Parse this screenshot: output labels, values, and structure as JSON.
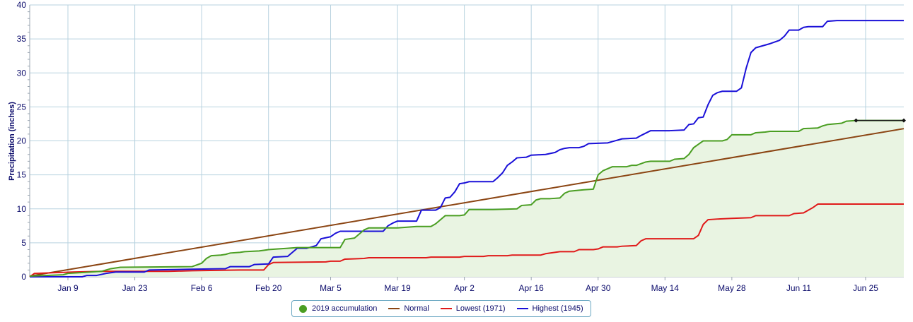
{
  "chart_data": {
    "type": "line",
    "title": "",
    "xlabel": "",
    "ylabel": "Precipitation (inches)",
    "ylim": [
      0,
      40
    ],
    "xlim": [
      "Jan 1",
      "Jul 4"
    ],
    "grid": true,
    "legend_position": "bottom-center",
    "x_ticks": [
      {
        "label": "Jan 9",
        "day": 9
      },
      {
        "label": "Jan 23",
        "day": 23
      },
      {
        "label": "Feb 6",
        "day": 37
      },
      {
        "label": "Feb 20",
        "day": 51
      },
      {
        "label": "Mar 5",
        "day": 64
      },
      {
        "label": "Mar 19",
        "day": 78
      },
      {
        "label": "Apr 2",
        "day": 92
      },
      {
        "label": "Apr 16",
        "day": 106
      },
      {
        "label": "Apr 30",
        "day": 120
      },
      {
        "label": "May 14",
        "day": 134
      },
      {
        "label": "May 28",
        "day": 148
      },
      {
        "label": "Jun 11",
        "day": 162
      },
      {
        "label": "Jun 25",
        "day": 176
      }
    ],
    "y_ticks": [
      0,
      5,
      10,
      15,
      20,
      25,
      30,
      35,
      40
    ],
    "series": [
      {
        "name": "2019 accumulation",
        "color": "#4a9e22",
        "fill": "#e9f4e2",
        "style": "step-area",
        "points": [
          [
            1,
            0.1
          ],
          [
            8,
            0.3
          ],
          [
            9,
            0.5
          ],
          [
            16,
            0.8
          ],
          [
            18,
            1.2
          ],
          [
            20,
            1.4
          ],
          [
            35,
            1.5
          ],
          [
            37,
            2.0
          ],
          [
            38,
            2.7
          ],
          [
            39,
            3.1
          ],
          [
            41,
            3.2
          ],
          [
            42,
            3.3
          ],
          [
            43,
            3.5
          ],
          [
            45,
            3.6
          ],
          [
            46,
            3.7
          ],
          [
            49,
            3.8
          ],
          [
            50,
            3.9
          ],
          [
            51,
            4.0
          ],
          [
            53,
            4.1
          ],
          [
            55,
            4.2
          ],
          [
            57,
            4.3
          ],
          [
            60,
            4.3
          ],
          [
            63,
            4.3
          ],
          [
            66,
            4.3
          ],
          [
            67,
            5.5
          ],
          [
            69,
            5.7
          ],
          [
            70,
            6.3
          ],
          [
            71,
            6.9
          ],
          [
            72,
            7.2
          ],
          [
            76,
            7.2
          ],
          [
            78,
            7.2
          ],
          [
            80,
            7.3
          ],
          [
            82,
            7.4
          ],
          [
            85,
            7.4
          ],
          [
            86,
            7.8
          ],
          [
            87,
            8.4
          ],
          [
            88,
            9.0
          ],
          [
            91,
            9.0
          ],
          [
            92,
            9.1
          ],
          [
            93,
            9.9
          ],
          [
            98,
            9.9
          ],
          [
            103,
            10.0
          ],
          [
            104,
            10.5
          ],
          [
            106,
            10.6
          ],
          [
            107,
            11.3
          ],
          [
            108,
            11.5
          ],
          [
            110,
            11.5
          ],
          [
            112,
            11.6
          ],
          [
            113,
            12.3
          ],
          [
            114,
            12.6
          ],
          [
            117,
            12.8
          ],
          [
            119,
            12.9
          ],
          [
            120,
            15.0
          ],
          [
            121,
            15.6
          ],
          [
            123,
            16.2
          ],
          [
            126,
            16.2
          ],
          [
            127,
            16.4
          ],
          [
            128,
            16.4
          ],
          [
            130,
            16.9
          ],
          [
            131,
            17.0
          ],
          [
            135,
            17.0
          ],
          [
            136,
            17.3
          ],
          [
            138,
            17.4
          ],
          [
            139,
            18.0
          ],
          [
            140,
            19.0
          ],
          [
            141,
            19.5
          ],
          [
            142,
            20.0
          ],
          [
            146,
            20.0
          ],
          [
            147,
            20.2
          ],
          [
            148,
            20.9
          ],
          [
            152,
            20.9
          ],
          [
            153,
            21.2
          ],
          [
            155,
            21.3
          ],
          [
            156,
            21.4
          ],
          [
            160,
            21.4
          ],
          [
            162,
            21.4
          ],
          [
            163,
            21.8
          ],
          [
            166,
            21.9
          ],
          [
            167,
            22.2
          ],
          [
            168,
            22.4
          ],
          [
            171,
            22.6
          ],
          [
            172,
            22.9
          ],
          [
            174,
            23.0
          ],
          [
            184,
            23.0
          ]
        ]
      },
      {
        "name": "Normal",
        "color": "#8b4513",
        "style": "line",
        "points": [
          [
            1,
            0.1
          ],
          [
            184,
            21.8
          ]
        ]
      },
      {
        "name": "Lowest (1971)",
        "color": "#e01a1a",
        "style": "step",
        "points": [
          [
            1,
            0.0
          ],
          [
            2,
            0.5
          ],
          [
            10,
            0.7
          ],
          [
            16,
            0.8
          ],
          [
            30,
            0.8
          ],
          [
            35,
            0.9
          ],
          [
            45,
            1.0
          ],
          [
            50,
            1.0
          ],
          [
            51,
            1.8
          ],
          [
            52,
            2.1
          ],
          [
            63,
            2.2
          ],
          [
            64,
            2.3
          ],
          [
            66,
            2.3
          ],
          [
            67,
            2.6
          ],
          [
            71,
            2.7
          ],
          [
            72,
            2.8
          ],
          [
            84,
            2.8
          ],
          [
            85,
            2.9
          ],
          [
            91,
            2.9
          ],
          [
            92,
            3.0
          ],
          [
            96,
            3.0
          ],
          [
            97,
            3.1
          ],
          [
            101,
            3.1
          ],
          [
            102,
            3.2
          ],
          [
            108,
            3.2
          ],
          [
            109,
            3.4
          ],
          [
            112,
            3.7
          ],
          [
            115,
            3.7
          ],
          [
            116,
            4.0
          ],
          [
            119,
            4.0
          ],
          [
            120,
            4.1
          ],
          [
            121,
            4.4
          ],
          [
            124,
            4.4
          ],
          [
            125,
            4.5
          ],
          [
            128,
            4.6
          ],
          [
            129,
            5.3
          ],
          [
            130,
            5.6
          ],
          [
            140,
            5.6
          ],
          [
            141,
            6.1
          ],
          [
            142,
            7.7
          ],
          [
            143,
            8.4
          ],
          [
            145,
            8.5
          ],
          [
            148,
            8.6
          ],
          [
            152,
            8.7
          ],
          [
            153,
            9.0
          ],
          [
            160,
            9.0
          ],
          [
            161,
            9.3
          ],
          [
            163,
            9.4
          ],
          [
            165,
            10.2
          ],
          [
            166,
            10.7
          ],
          [
            184,
            10.7
          ]
        ]
      },
      {
        "name": "Highest (1945)",
        "color": "#1a10d8",
        "style": "step",
        "points": [
          [
            1,
            0.0
          ],
          [
            12,
            0.0
          ],
          [
            13,
            0.2
          ],
          [
            15,
            0.2
          ],
          [
            17,
            0.5
          ],
          [
            19,
            0.7
          ],
          [
            25,
            0.7
          ],
          [
            26,
            1.0
          ],
          [
            34,
            1.1
          ],
          [
            42,
            1.2
          ],
          [
            43,
            1.5
          ],
          [
            47,
            1.5
          ],
          [
            48,
            1.8
          ],
          [
            51,
            1.9
          ],
          [
            52,
            2.9
          ],
          [
            55,
            3.0
          ],
          [
            56,
            3.6
          ],
          [
            57,
            4.2
          ],
          [
            59,
            4.2
          ],
          [
            60,
            4.4
          ],
          [
            61,
            4.6
          ],
          [
            62,
            5.6
          ],
          [
            64,
            5.9
          ],
          [
            65,
            6.4
          ],
          [
            66,
            6.7
          ],
          [
            75,
            6.7
          ],
          [
            76,
            7.5
          ],
          [
            77,
            7.9
          ],
          [
            78,
            8.2
          ],
          [
            82,
            8.2
          ],
          [
            83,
            9.8
          ],
          [
            86,
            9.8
          ],
          [
            87,
            10.2
          ],
          [
            88,
            11.6
          ],
          [
            89,
            11.7
          ],
          [
            90,
            12.5
          ],
          [
            91,
            13.7
          ],
          [
            92,
            13.8
          ],
          [
            93,
            14.0
          ],
          [
            98,
            14.0
          ],
          [
            99,
            14.6
          ],
          [
            100,
            15.3
          ],
          [
            101,
            16.4
          ],
          [
            102,
            16.9
          ],
          [
            103,
            17.5
          ],
          [
            105,
            17.6
          ],
          [
            106,
            17.9
          ],
          [
            109,
            18.0
          ],
          [
            111,
            18.3
          ],
          [
            112,
            18.7
          ],
          [
            113,
            18.9
          ],
          [
            114,
            19.0
          ],
          [
            116,
            19.0
          ],
          [
            117,
            19.2
          ],
          [
            118,
            19.6
          ],
          [
            122,
            19.7
          ],
          [
            123,
            19.9
          ],
          [
            124,
            20.1
          ],
          [
            125,
            20.3
          ],
          [
            128,
            20.4
          ],
          [
            129,
            20.8
          ],
          [
            131,
            21.5
          ],
          [
            135,
            21.5
          ],
          [
            138,
            21.6
          ],
          [
            139,
            22.4
          ],
          [
            140,
            22.5
          ],
          [
            141,
            23.4
          ],
          [
            142,
            23.5
          ],
          [
            143,
            25.3
          ],
          [
            144,
            26.7
          ],
          [
            145,
            27.1
          ],
          [
            146,
            27.3
          ],
          [
            147,
            27.3
          ],
          [
            149,
            27.3
          ],
          [
            150,
            27.8
          ],
          [
            151,
            30.7
          ],
          [
            152,
            33.0
          ],
          [
            153,
            33.7
          ],
          [
            156,
            34.3
          ],
          [
            158,
            34.8
          ],
          [
            159,
            35.4
          ],
          [
            160,
            36.3
          ],
          [
            162,
            36.3
          ],
          [
            163,
            36.7
          ],
          [
            164,
            36.8
          ],
          [
            165,
            36.8
          ],
          [
            167,
            36.8
          ],
          [
            168,
            37.6
          ],
          [
            170,
            37.7
          ],
          [
            184,
            37.7
          ]
        ]
      }
    ],
    "markers": [
      {
        "series": "2019 accumulation",
        "day": 174,
        "value": 23.0
      },
      {
        "series": "2019 accumulation",
        "day": 184,
        "value": 23.0
      }
    ]
  },
  "legend": {
    "items": [
      {
        "label": "2019 accumulation",
        "color": "#4a9e22",
        "kind": "dot"
      },
      {
        "label": "Normal",
        "color": "#8b4513",
        "kind": "line"
      },
      {
        "label": "Lowest (1971)",
        "color": "#e01a1a",
        "kind": "line"
      },
      {
        "label": "Highest (1945)",
        "color": "#1a10d8",
        "kind": "line"
      }
    ]
  }
}
